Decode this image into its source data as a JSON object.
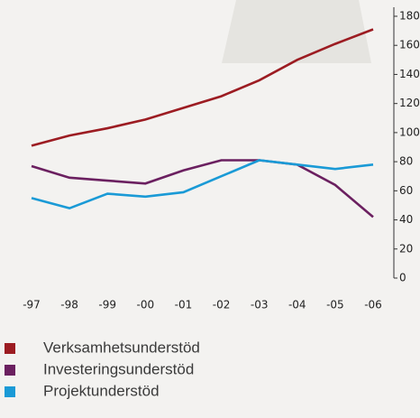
{
  "chart_data": {
    "type": "line",
    "categories": [
      "-97",
      "-98",
      "-99",
      "-00",
      "-01",
      "-02",
      "-03",
      "-04",
      "-05",
      "-06"
    ],
    "series": [
      {
        "name": "Verksamhetsunderstöd",
        "color": "#9c1c22",
        "values": [
          91,
          98,
          103,
          109,
          117,
          125,
          136,
          150,
          161,
          171
        ]
      },
      {
        "name": "Investeringsunderstöd",
        "color": "#6b2060",
        "values": [
          77,
          69,
          67,
          65,
          74,
          81,
          81,
          78,
          64,
          42
        ]
      },
      {
        "name": "Projektunderstöd",
        "color": "#1a9ad6",
        "values": [
          55,
          48,
          58,
          56,
          59,
          70,
          81,
          78,
          75,
          78
        ]
      }
    ],
    "ylim": [
      0,
      180
    ],
    "yticks": [
      0,
      20,
      40,
      60,
      80,
      100,
      120,
      140,
      160,
      180
    ],
    "y_axis_side": "right"
  }
}
